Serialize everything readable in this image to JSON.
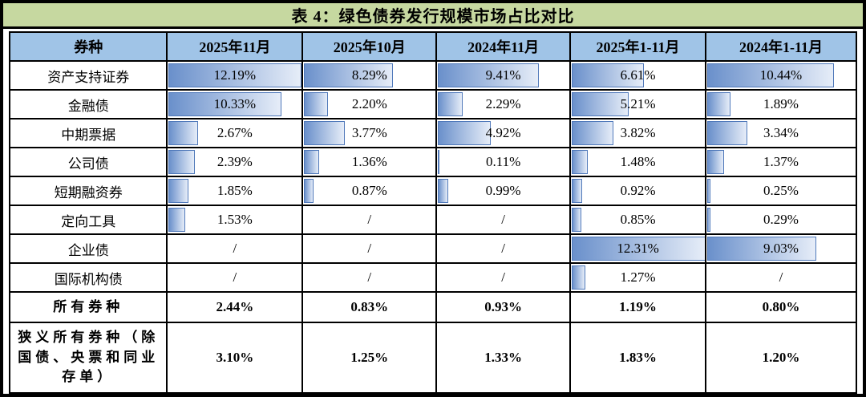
{
  "colors": {
    "title_bg": "#c6d8a0",
    "header_bg": "#a0c4e7",
    "bar_fill_start": "#6a90cb",
    "bar_fill_end": "#e6edf8",
    "bar_border": "#5079ba",
    "frame_border": "#000000"
  },
  "chart_data": {
    "type": "table",
    "title": "表 4：绿色债券发行规模市场占比对比",
    "columns": [
      "券种",
      "2025年11月",
      "2025年10月",
      "2024年11月",
      "2025年1-11月",
      "2024年1-11月"
    ],
    "bar_scale_max": 12.31,
    "bar_style_note": "excel-style horizontal gradient data bars, scaled 0 to 12.31%",
    "rows": [
      {
        "label": "资产支持证券",
        "style": "data",
        "cells": [
          {
            "text": "12.19%",
            "bar": 12.19
          },
          {
            "text": "8.29%",
            "bar": 8.29
          },
          {
            "text": "9.41%",
            "bar": 9.41
          },
          {
            "text": "6.61%",
            "bar": 6.61
          },
          {
            "text": "10.44%",
            "bar": 10.44
          }
        ]
      },
      {
        "label": "金融债",
        "style": "data",
        "cells": [
          {
            "text": "10.33%",
            "bar": 10.33
          },
          {
            "text": "2.20%",
            "bar": 2.2
          },
          {
            "text": "2.29%",
            "bar": 2.29
          },
          {
            "text": "5.21%",
            "bar": 5.21
          },
          {
            "text": "1.89%",
            "bar": 1.89
          }
        ]
      },
      {
        "label": "中期票据",
        "style": "data",
        "cells": [
          {
            "text": "2.67%",
            "bar": 2.67
          },
          {
            "text": "3.77%",
            "bar": 3.77
          },
          {
            "text": "4.92%",
            "bar": 4.92
          },
          {
            "text": "3.82%",
            "bar": 3.82
          },
          {
            "text": "3.34%",
            "bar": 3.34
          }
        ]
      },
      {
        "label": "公司债",
        "style": "data",
        "cells": [
          {
            "text": "2.39%",
            "bar": 2.39
          },
          {
            "text": "1.36%",
            "bar": 1.36
          },
          {
            "text": "0.11%",
            "bar": 0.11
          },
          {
            "text": "1.48%",
            "bar": 1.48
          },
          {
            "text": "1.37%",
            "bar": 1.37
          }
        ]
      },
      {
        "label": "短期融资券",
        "style": "data",
        "cells": [
          {
            "text": "1.85%",
            "bar": 1.85
          },
          {
            "text": "0.87%",
            "bar": 0.87
          },
          {
            "text": "0.99%",
            "bar": 0.99
          },
          {
            "text": "0.92%",
            "bar": 0.92
          },
          {
            "text": "0.25%",
            "bar": 0.25
          }
        ]
      },
      {
        "label": "定向工具",
        "style": "data",
        "cells": [
          {
            "text": "1.53%",
            "bar": 1.53
          },
          {
            "text": "/",
            "bar": null
          },
          {
            "text": "/",
            "bar": null
          },
          {
            "text": "0.85%",
            "bar": 0.85
          },
          {
            "text": "0.29%",
            "bar": 0.29
          }
        ]
      },
      {
        "label": "企业债",
        "style": "data",
        "cells": [
          {
            "text": "/",
            "bar": null
          },
          {
            "text": "/",
            "bar": null
          },
          {
            "text": "/",
            "bar": null
          },
          {
            "text": "12.31%",
            "bar": 12.31
          },
          {
            "text": "9.03%",
            "bar": 9.03
          }
        ]
      },
      {
        "label": "国际机构债",
        "style": "data",
        "cells": [
          {
            "text": "/",
            "bar": null
          },
          {
            "text": "/",
            "bar": null
          },
          {
            "text": "/",
            "bar": null
          },
          {
            "text": "1.27%",
            "bar": 1.27
          },
          {
            "text": "/",
            "bar": null
          }
        ]
      },
      {
        "label": "所有券种",
        "style": "summary",
        "cells": [
          {
            "text": "2.44%",
            "bar": null
          },
          {
            "text": "0.83%",
            "bar": null
          },
          {
            "text": "0.93%",
            "bar": null
          },
          {
            "text": "1.19%",
            "bar": null
          },
          {
            "text": "0.80%",
            "bar": null
          }
        ]
      },
      {
        "label": "狭义所有券种（除\n国债、央票和同业\n存单）",
        "style": "summary-tall",
        "cells": [
          {
            "text": "3.10%",
            "bar": null
          },
          {
            "text": "1.25%",
            "bar": null
          },
          {
            "text": "1.33%",
            "bar": null
          },
          {
            "text": "1.83%",
            "bar": null
          },
          {
            "text": "1.20%",
            "bar": null
          }
        ]
      }
    ]
  }
}
